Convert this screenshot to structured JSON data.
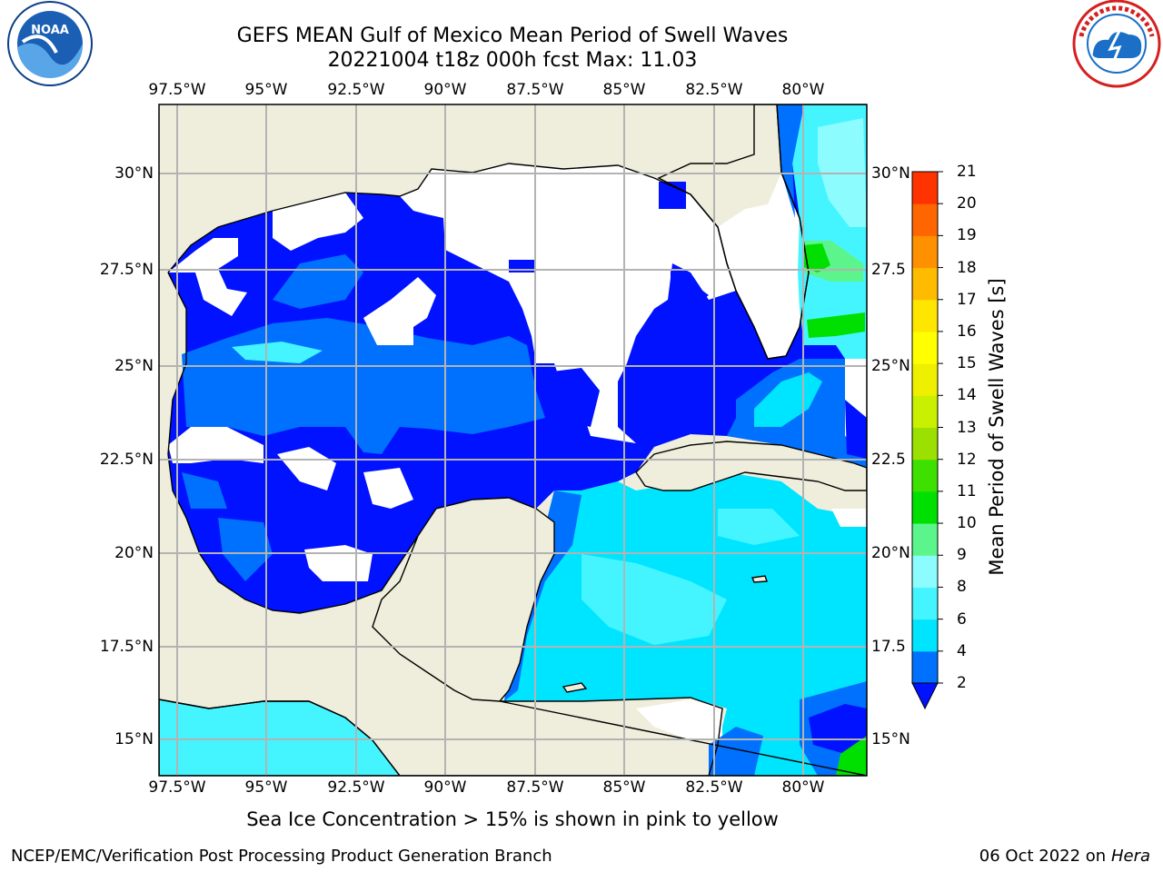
{
  "header": {
    "title_line1": "GEFS MEAN Gulf of Mexico Mean Period of Swell Waves",
    "title_line2": "20221004 t18z 000h fcst   Max: 11.03"
  },
  "map": {
    "lon_labels": [
      "97.5°W",
      "95°W",
      "92.5°W",
      "90°W",
      "87.5°W",
      "85°W",
      "82.5°W",
      "80°W"
    ],
    "lat_labels_left": [
      "30°N",
      "27.5°N",
      "25°N",
      "22.5°N",
      "20°N",
      "17.5°N",
      "15°N"
    ],
    "lat_labels_right": [
      "30°N",
      "27.5",
      "25°N",
      "22.5",
      "20°N",
      "17.5",
      "15°N"
    ],
    "colors": {
      "land": "#efeedc",
      "ocean_white": "#ffffff",
      "grid": "#b3b3b3"
    }
  },
  "colorbar": {
    "title": "Mean Period of Swell Waves [s]",
    "ticks": [
      "2",
      "4",
      "6",
      "8",
      "9",
      "10",
      "11",
      "12",
      "13",
      "14",
      "15",
      "16",
      "17",
      "18",
      "19",
      "20",
      "21"
    ],
    "colors": [
      "#0070ff",
      "#00e5ff",
      "#44f5ff",
      "#8cfcff",
      "#5cf58c",
      "#00e000",
      "#3ee000",
      "#9be000",
      "#c8f000",
      "#eef000",
      "#ffff00",
      "#ffe600",
      "#ffbb00",
      "#ff9000",
      "#ff6600",
      "#ff3300",
      "#ff0000"
    ],
    "under_color": "#0012ff"
  },
  "footer": {
    "note": "Sea Ice Concentration > 15% is shown in pink to yellow",
    "credit": "NCEP/EMC/Verification Post Processing Product Generation Branch",
    "date": "06 Oct 2022 on",
    "machine": "Hera"
  },
  "logos": {
    "left": "noaa-logo",
    "right": "nws-logo"
  }
}
